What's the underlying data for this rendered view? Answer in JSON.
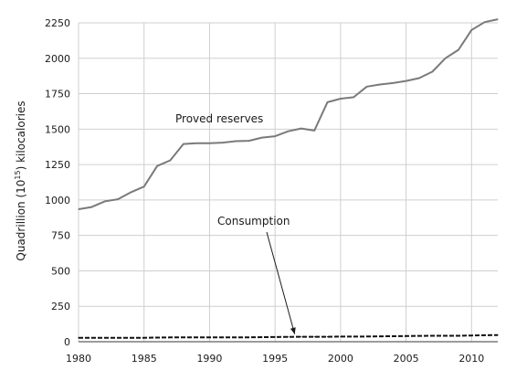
{
  "chart_data": {
    "type": "line",
    "title": "",
    "ylabel": {
      "pre": "Quadrillion (10",
      "sup": "15",
      "post": ") kilocalories"
    },
    "xlabel": "",
    "xlim": [
      1980,
      2012
    ],
    "ylim": [
      0,
      2250
    ],
    "x_ticks": [
      1980,
      1985,
      1990,
      1995,
      2000,
      2005,
      2010
    ],
    "y_ticks": [
      0,
      250,
      500,
      750,
      1000,
      1250,
      1500,
      1750,
      2000,
      2250
    ],
    "y_tick_labels": [
      "0",
      "250",
      "500",
      "750",
      "1000",
      "1250",
      "1500",
      "1750",
      "2000",
      "2250"
    ],
    "grid": "vertical-and-horizontal",
    "series": [
      {
        "name": "Proved reserves",
        "style": "solid",
        "color": "#7a7a7a",
        "x": [
          1980,
          1981,
          1982,
          1983,
          1984,
          1985,
          1986,
          1987,
          1988,
          1989,
          1990,
          1991,
          1992,
          1993,
          1994,
          1995,
          1996,
          1997,
          1998,
          1999,
          2000,
          2001,
          2002,
          2003,
          2004,
          2005,
          2006,
          2007,
          2008,
          2009,
          2010,
          2011,
          2012
        ],
        "values": [
          935,
          950,
          990,
          1005,
          1055,
          1095,
          1240,
          1280,
          1395,
          1400,
          1400,
          1405,
          1415,
          1418,
          1440,
          1450,
          1485,
          1505,
          1490,
          1690,
          1715,
          1725,
          1800,
          1815,
          1825,
          1840,
          1860,
          1905,
          2000,
          2060,
          2200,
          2255,
          2275
        ]
      },
      {
        "name": "Consumption",
        "style": "dashed",
        "color": "#111111",
        "x": [
          1980,
          1981,
          1982,
          1983,
          1984,
          1985,
          1986,
          1987,
          1988,
          1989,
          1990,
          1991,
          1992,
          1993,
          1994,
          1995,
          1996,
          1997,
          1998,
          1999,
          2000,
          2001,
          2002,
          2003,
          2004,
          2005,
          2006,
          2007,
          2008,
          2009,
          2010,
          2011,
          2012
        ],
        "values": [
          28,
          28,
          27,
          28,
          28,
          28,
          29,
          30,
          31,
          31,
          31,
          31,
          31,
          31,
          32,
          33,
          34,
          35,
          35,
          35,
          36,
          36,
          37,
          38,
          39,
          40,
          41,
          42,
          42,
          42,
          44,
          46,
          47
        ]
      }
    ],
    "annotations": [
      {
        "text": "Proved reserves",
        "series": 0
      },
      {
        "text": "Consumption",
        "series": 1,
        "arrow_to_x": 1996.5
      }
    ]
  }
}
